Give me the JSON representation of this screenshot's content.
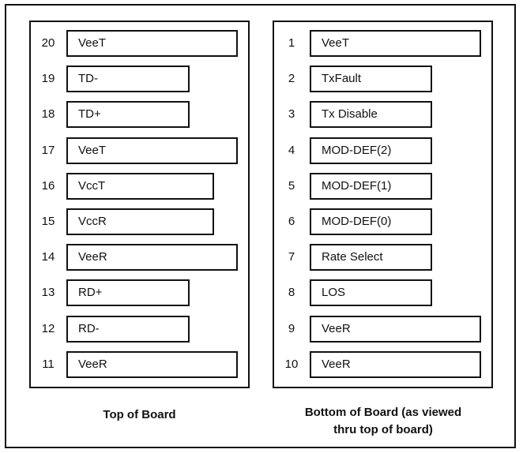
{
  "top_board": {
    "caption": "Top of Board",
    "pins": [
      {
        "num": "20",
        "label": "VeeT",
        "size": "long"
      },
      {
        "num": "19",
        "label": "TD-",
        "size": "short"
      },
      {
        "num": "18",
        "label": "TD+",
        "size": "short"
      },
      {
        "num": "17",
        "label": "VeeT",
        "size": "long"
      },
      {
        "num": "16",
        "label": "VccT",
        "size": "medium"
      },
      {
        "num": "15",
        "label": "VccR",
        "size": "medium"
      },
      {
        "num": "14",
        "label": "VeeR",
        "size": "long"
      },
      {
        "num": "13",
        "label": "RD+",
        "size": "short"
      },
      {
        "num": "12",
        "label": "RD-",
        "size": "short"
      },
      {
        "num": "11",
        "label": "VeeR",
        "size": "long"
      }
    ]
  },
  "bottom_board": {
    "caption_line1": "Bottom of Board (as viewed",
    "caption_line2": "thru top of board)",
    "pins": [
      {
        "num": "1",
        "label": "VeeT",
        "size": "long"
      },
      {
        "num": "2",
        "label": "TxFault",
        "size": "short"
      },
      {
        "num": "3",
        "label": "Tx Disable",
        "size": "short"
      },
      {
        "num": "4",
        "label": "MOD-DEF(2)",
        "size": "short"
      },
      {
        "num": "5",
        "label": "MOD-DEF(1)",
        "size": "short"
      },
      {
        "num": "6",
        "label": "MOD-DEF(0)",
        "size": "short"
      },
      {
        "num": "7",
        "label": "Rate Select",
        "size": "short"
      },
      {
        "num": "8",
        "label": "LOS",
        "size": "short"
      },
      {
        "num": "9",
        "label": "VeeR",
        "size": "long"
      },
      {
        "num": "10",
        "label": "VeeR",
        "size": "long"
      }
    ]
  }
}
